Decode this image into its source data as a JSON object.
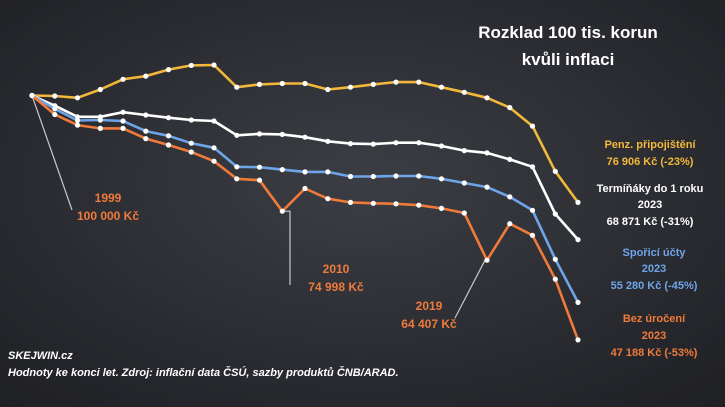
{
  "footer": {
    "brand": "SKEJWIN.cz",
    "note": "Hodnoty ke konci let. Zdroj: inflační data ČSÚ, sazby produktů ČNB/ARAD."
  },
  "chart_data": {
    "type": "line",
    "title_line1": "Rozklad 100 tis. korun",
    "title_line2": "kvůli inflaci",
    "grid": false,
    "legend": "direct labels at line ends",
    "xlabel": "",
    "ylabel": "",
    "ylim": [
      45000,
      112000
    ],
    "x": [
      1999,
      2000,
      2001,
      2002,
      2003,
      2004,
      2005,
      2006,
      2007,
      2008,
      2009,
      2010,
      2011,
      2012,
      2013,
      2014,
      2015,
      2016,
      2017,
      2018,
      2019,
      2020,
      2021,
      2022,
      2023
    ],
    "series": [
      {
        "name": "Penz. připojištění",
        "end_text": "76 906 Kč  (-23%)",
        "color": "#f3b83a",
        "values": [
          100000,
          99900,
          99500,
          101300,
          103500,
          104200,
          105600,
          106500,
          106600,
          101800,
          102400,
          102600,
          102600,
          101300,
          101800,
          102400,
          102900,
          102900,
          101800,
          100700,
          99500,
          97400,
          93400,
          83600,
          76906
        ]
      },
      {
        "name": "Termíňáky do 1 roku",
        "year_text": "2023",
        "end_text": "68 871 Kč  (-31%)",
        "color": "#ffffff",
        "values": [
          100000,
          97800,
          95400,
          95400,
          96400,
          95800,
          95200,
          94700,
          94500,
          91400,
          91700,
          91600,
          91000,
          90100,
          89600,
          89500,
          89800,
          89800,
          89100,
          88100,
          87600,
          86200,
          84600,
          74400,
          68871
        ]
      },
      {
        "name": "Spořicí účty",
        "year_text": "2023",
        "end_text": "55 280 Kč  (-45%)",
        "color": "#6fa4e8",
        "values": [
          100000,
          97100,
          94600,
          94700,
          94500,
          92300,
          91300,
          89700,
          88700,
          84600,
          84500,
          84000,
          83500,
          83500,
          82500,
          82500,
          82600,
          82600,
          82000,
          81100,
          80200,
          78100,
          75200,
          64600,
          55280
        ]
      },
      {
        "name": "Bez úročení",
        "year_text": "2023",
        "end_text": "47 188 Kč  (-53%)",
        "color": "#f07a3a",
        "values": [
          100000,
          95900,
          93600,
          92900,
          92900,
          90700,
          89300,
          87800,
          85800,
          82000,
          81700,
          74998,
          79900,
          77700,
          76900,
          76700,
          76600,
          76300,
          75600,
          74600,
          64407,
          72300,
          69800,
          60300,
          47188
        ]
      }
    ],
    "annotations": [
      {
        "label": "1999",
        "value_text": "100 000 Kč",
        "x": 1999,
        "y": 100000
      },
      {
        "label": "2010",
        "value_text": "74 998 Kč",
        "x": 2010,
        "y": 74998
      },
      {
        "label": "2019",
        "value_text": "64 407 Kč",
        "x": 2019,
        "y": 64407
      }
    ]
  }
}
